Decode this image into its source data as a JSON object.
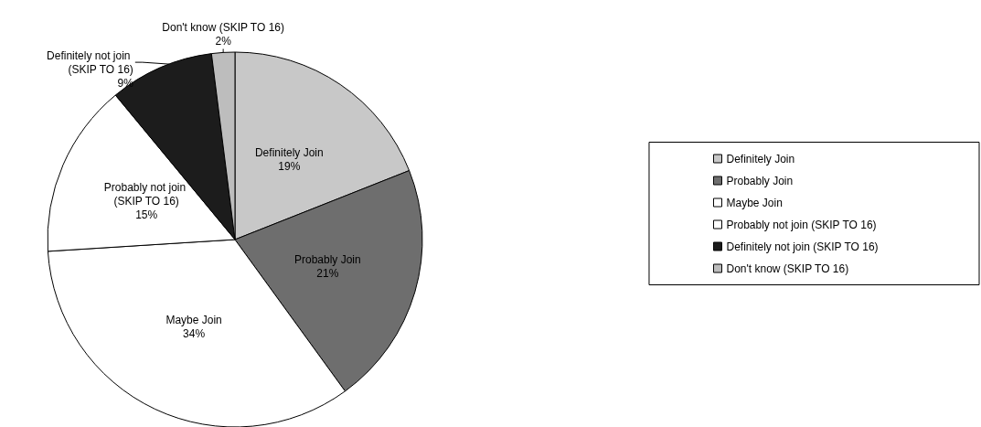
{
  "chart_data": {
    "type": "pie",
    "categories": [
      "Definitely Join",
      "Probably Join",
      "Maybe Join",
      "Probably not join (SKIP TO 16)",
      "Definitely not join (SKIP TO 16)",
      "Don't know (SKIP TO 16)"
    ],
    "values": [
      19,
      21,
      34,
      15,
      9,
      2
    ],
    "value_labels": [
      "19%",
      "21%",
      "34%",
      "15%",
      "9%",
      "2%"
    ],
    "colors": [
      "#c8c8c8",
      "#6e6e6e",
      "#ffffff",
      "#ffffff",
      "#1c1c1c",
      "#bdbdbd"
    ],
    "data_labels": true,
    "legend": "right"
  }
}
